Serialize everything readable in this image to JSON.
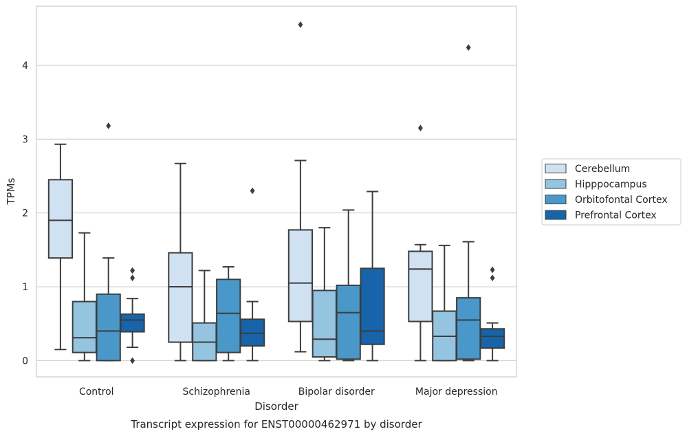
{
  "chart_data": {
    "type": "boxplot",
    "title": "Transcript expression for ENST00000462971 by disorder",
    "xlabel": "Disorder",
    "ylabel": "TPMs",
    "categories": [
      "Control",
      "Schizophrenia",
      "Bipolar disorder",
      "Major depression"
    ],
    "ylim": [
      -0.22,
      4.8
    ],
    "yticks": [
      0,
      1,
      2,
      3,
      4
    ],
    "grid": "horizontal",
    "legend": {
      "placement": "right",
      "entries": [
        "Cerebellum",
        "Hipppocampus",
        "Orbitofontal Cortex",
        "Prefrontal Cortex"
      ]
    },
    "colors": [
      "#d0e1f2",
      "#94c4df",
      "#4a98c9",
      "#1764ab"
    ],
    "series": [
      {
        "name": "Cerebellum",
        "boxes": [
          {
            "whislo": 0.15,
            "q1": 1.39,
            "med": 1.9,
            "q3": 2.45,
            "whishi": 2.93,
            "fliers": []
          },
          {
            "whislo": 0.0,
            "q1": 0.25,
            "med": 1.0,
            "q3": 1.46,
            "whishi": 2.67,
            "fliers": []
          },
          {
            "whislo": 0.12,
            "q1": 0.53,
            "med": 1.05,
            "q3": 1.77,
            "whishi": 2.71,
            "fliers": [
              4.55
            ]
          },
          {
            "whislo": 0.0,
            "q1": 0.53,
            "med": 1.24,
            "q3": 1.48,
            "whishi": 1.57,
            "fliers": [
              3.15
            ]
          }
        ]
      },
      {
        "name": "Hipppocampus",
        "boxes": [
          {
            "whislo": 0.0,
            "q1": 0.11,
            "med": 0.31,
            "q3": 0.8,
            "whishi": 1.73,
            "fliers": []
          },
          {
            "whislo": 0.0,
            "q1": 0.0,
            "med": 0.25,
            "q3": 0.51,
            "whishi": 1.22,
            "fliers": []
          },
          {
            "whislo": 0.0,
            "q1": 0.05,
            "med": 0.29,
            "q3": 0.95,
            "whishi": 1.8,
            "fliers": []
          },
          {
            "whislo": 0.0,
            "q1": 0.0,
            "med": 0.33,
            "q3": 0.67,
            "whishi": 1.56,
            "fliers": []
          }
        ]
      },
      {
        "name": "Orbitofontal Cortex",
        "boxes": [
          {
            "whislo": 0.0,
            "q1": 0.0,
            "med": 0.4,
            "q3": 0.9,
            "whishi": 1.39,
            "fliers": [
              3.18
            ]
          },
          {
            "whislo": 0.0,
            "q1": 0.11,
            "med": 0.64,
            "q3": 1.1,
            "whishi": 1.27,
            "fliers": []
          },
          {
            "whislo": 0.0,
            "q1": 0.02,
            "med": 0.65,
            "q3": 1.02,
            "whishi": 2.04,
            "fliers": []
          },
          {
            "whislo": 0.0,
            "q1": 0.02,
            "med": 0.55,
            "q3": 0.85,
            "whishi": 1.61,
            "fliers": [
              4.24
            ]
          }
        ]
      },
      {
        "name": "Prefrontal Cortex",
        "boxes": [
          {
            "whislo": 0.18,
            "q1": 0.39,
            "med": 0.55,
            "q3": 0.63,
            "whishi": 0.84,
            "fliers": [
              1.22,
              1.12,
              0.0
            ]
          },
          {
            "whislo": 0.0,
            "q1": 0.2,
            "med": 0.37,
            "q3": 0.56,
            "whishi": 0.8,
            "fliers": [
              2.3
            ]
          },
          {
            "whislo": 0.0,
            "q1": 0.22,
            "med": 0.4,
            "q3": 1.25,
            "whishi": 2.29,
            "fliers": []
          },
          {
            "whislo": 0.0,
            "q1": 0.17,
            "med": 0.33,
            "q3": 0.43,
            "whishi": 0.51,
            "fliers": [
              1.23,
              1.12
            ]
          }
        ]
      }
    ]
  }
}
